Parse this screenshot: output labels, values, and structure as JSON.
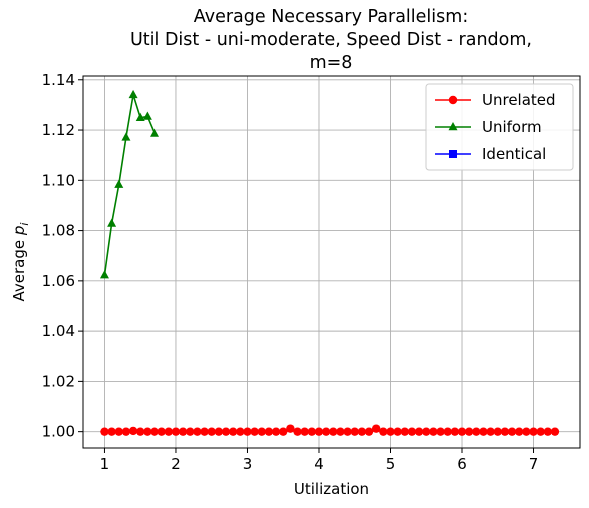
{
  "chart_data": {
    "type": "line",
    "title": [
      "Average Necessary Parallelism:",
      "Util Dist - uni-moderate, Speed Dist - random,",
      "m=8"
    ],
    "xlabel": "Utilization",
    "ylabel": "Average p_i",
    "ylabel_parts": {
      "base": "Average ",
      "var": "p",
      "sub": "i"
    },
    "xlim": [
      0.7,
      7.65
    ],
    "ylim": [
      0.9935,
      1.1415
    ],
    "xticks": [
      1,
      2,
      3,
      4,
      5,
      6,
      7
    ],
    "xtick_labels": [
      "1",
      "2",
      "3",
      "4",
      "5",
      "6",
      "7"
    ],
    "yticks": [
      1.0,
      1.02,
      1.04,
      1.06,
      1.08,
      1.1,
      1.12,
      1.14
    ],
    "ytick_labels": [
      "1.00",
      "1.02",
      "1.04",
      "1.06",
      "1.08",
      "1.10",
      "1.12",
      "1.14"
    ],
    "grid": true,
    "legend_position": "top-right",
    "series": [
      {
        "name": "Unrelated",
        "color": "#ff0000",
        "marker": "circle",
        "x": [
          1.0,
          1.1,
          1.2,
          1.3,
          1.4,
          1.5,
          1.6,
          1.7,
          1.8,
          1.9,
          2.0,
          2.1,
          2.2,
          2.3,
          2.4,
          2.5,
          2.6,
          2.7,
          2.8,
          2.9,
          3.0,
          3.1,
          3.2,
          3.3,
          3.4,
          3.5,
          3.6,
          3.7,
          3.8,
          3.9,
          4.0,
          4.1,
          4.2,
          4.3,
          4.4,
          4.5,
          4.6,
          4.7,
          4.8,
          4.9,
          5.0,
          5.1,
          5.2,
          5.3,
          5.4,
          5.5,
          5.6,
          5.7,
          5.8,
          5.9,
          6.0,
          6.1,
          6.2,
          6.3,
          6.4,
          6.5,
          6.6,
          6.7,
          6.8,
          6.9,
          7.0,
          7.1,
          7.2,
          7.3
        ],
        "y": [
          1.0,
          1.0,
          1.0,
          1.0,
          1.0003,
          1.0,
          1.0,
          1.0,
          1.0,
          1.0,
          1.0,
          1.0,
          1.0,
          1.0,
          1.0,
          1.0,
          1.0,
          1.0,
          1.0,
          1.0,
          1.0,
          1.0,
          1.0,
          1.0,
          1.0,
          1.0,
          1.0012,
          1.0,
          1.0,
          1.0,
          1.0,
          1.0,
          1.0,
          1.0,
          1.0,
          1.0,
          1.0,
          1.0,
          1.0012,
          1.0,
          1.0,
          1.0,
          1.0,
          1.0,
          1.0,
          1.0,
          1.0,
          1.0,
          1.0,
          1.0,
          1.0,
          1.0,
          1.0,
          1.0,
          1.0,
          1.0,
          1.0,
          1.0,
          1.0,
          1.0,
          1.0,
          1.0,
          1.0,
          1.0
        ]
      },
      {
        "name": "Uniform",
        "color": "#008000",
        "marker": "triangle",
        "x": [
          1.0,
          1.1,
          1.2,
          1.3,
          1.4,
          1.5,
          1.6,
          1.7
        ],
        "y": [
          1.0623,
          1.0828,
          1.0983,
          1.1171,
          1.134,
          1.1249,
          1.1254,
          1.1186
        ]
      },
      {
        "name": "Identical",
        "color": "#0000ff",
        "marker": "square",
        "x": [],
        "y": []
      }
    ]
  }
}
